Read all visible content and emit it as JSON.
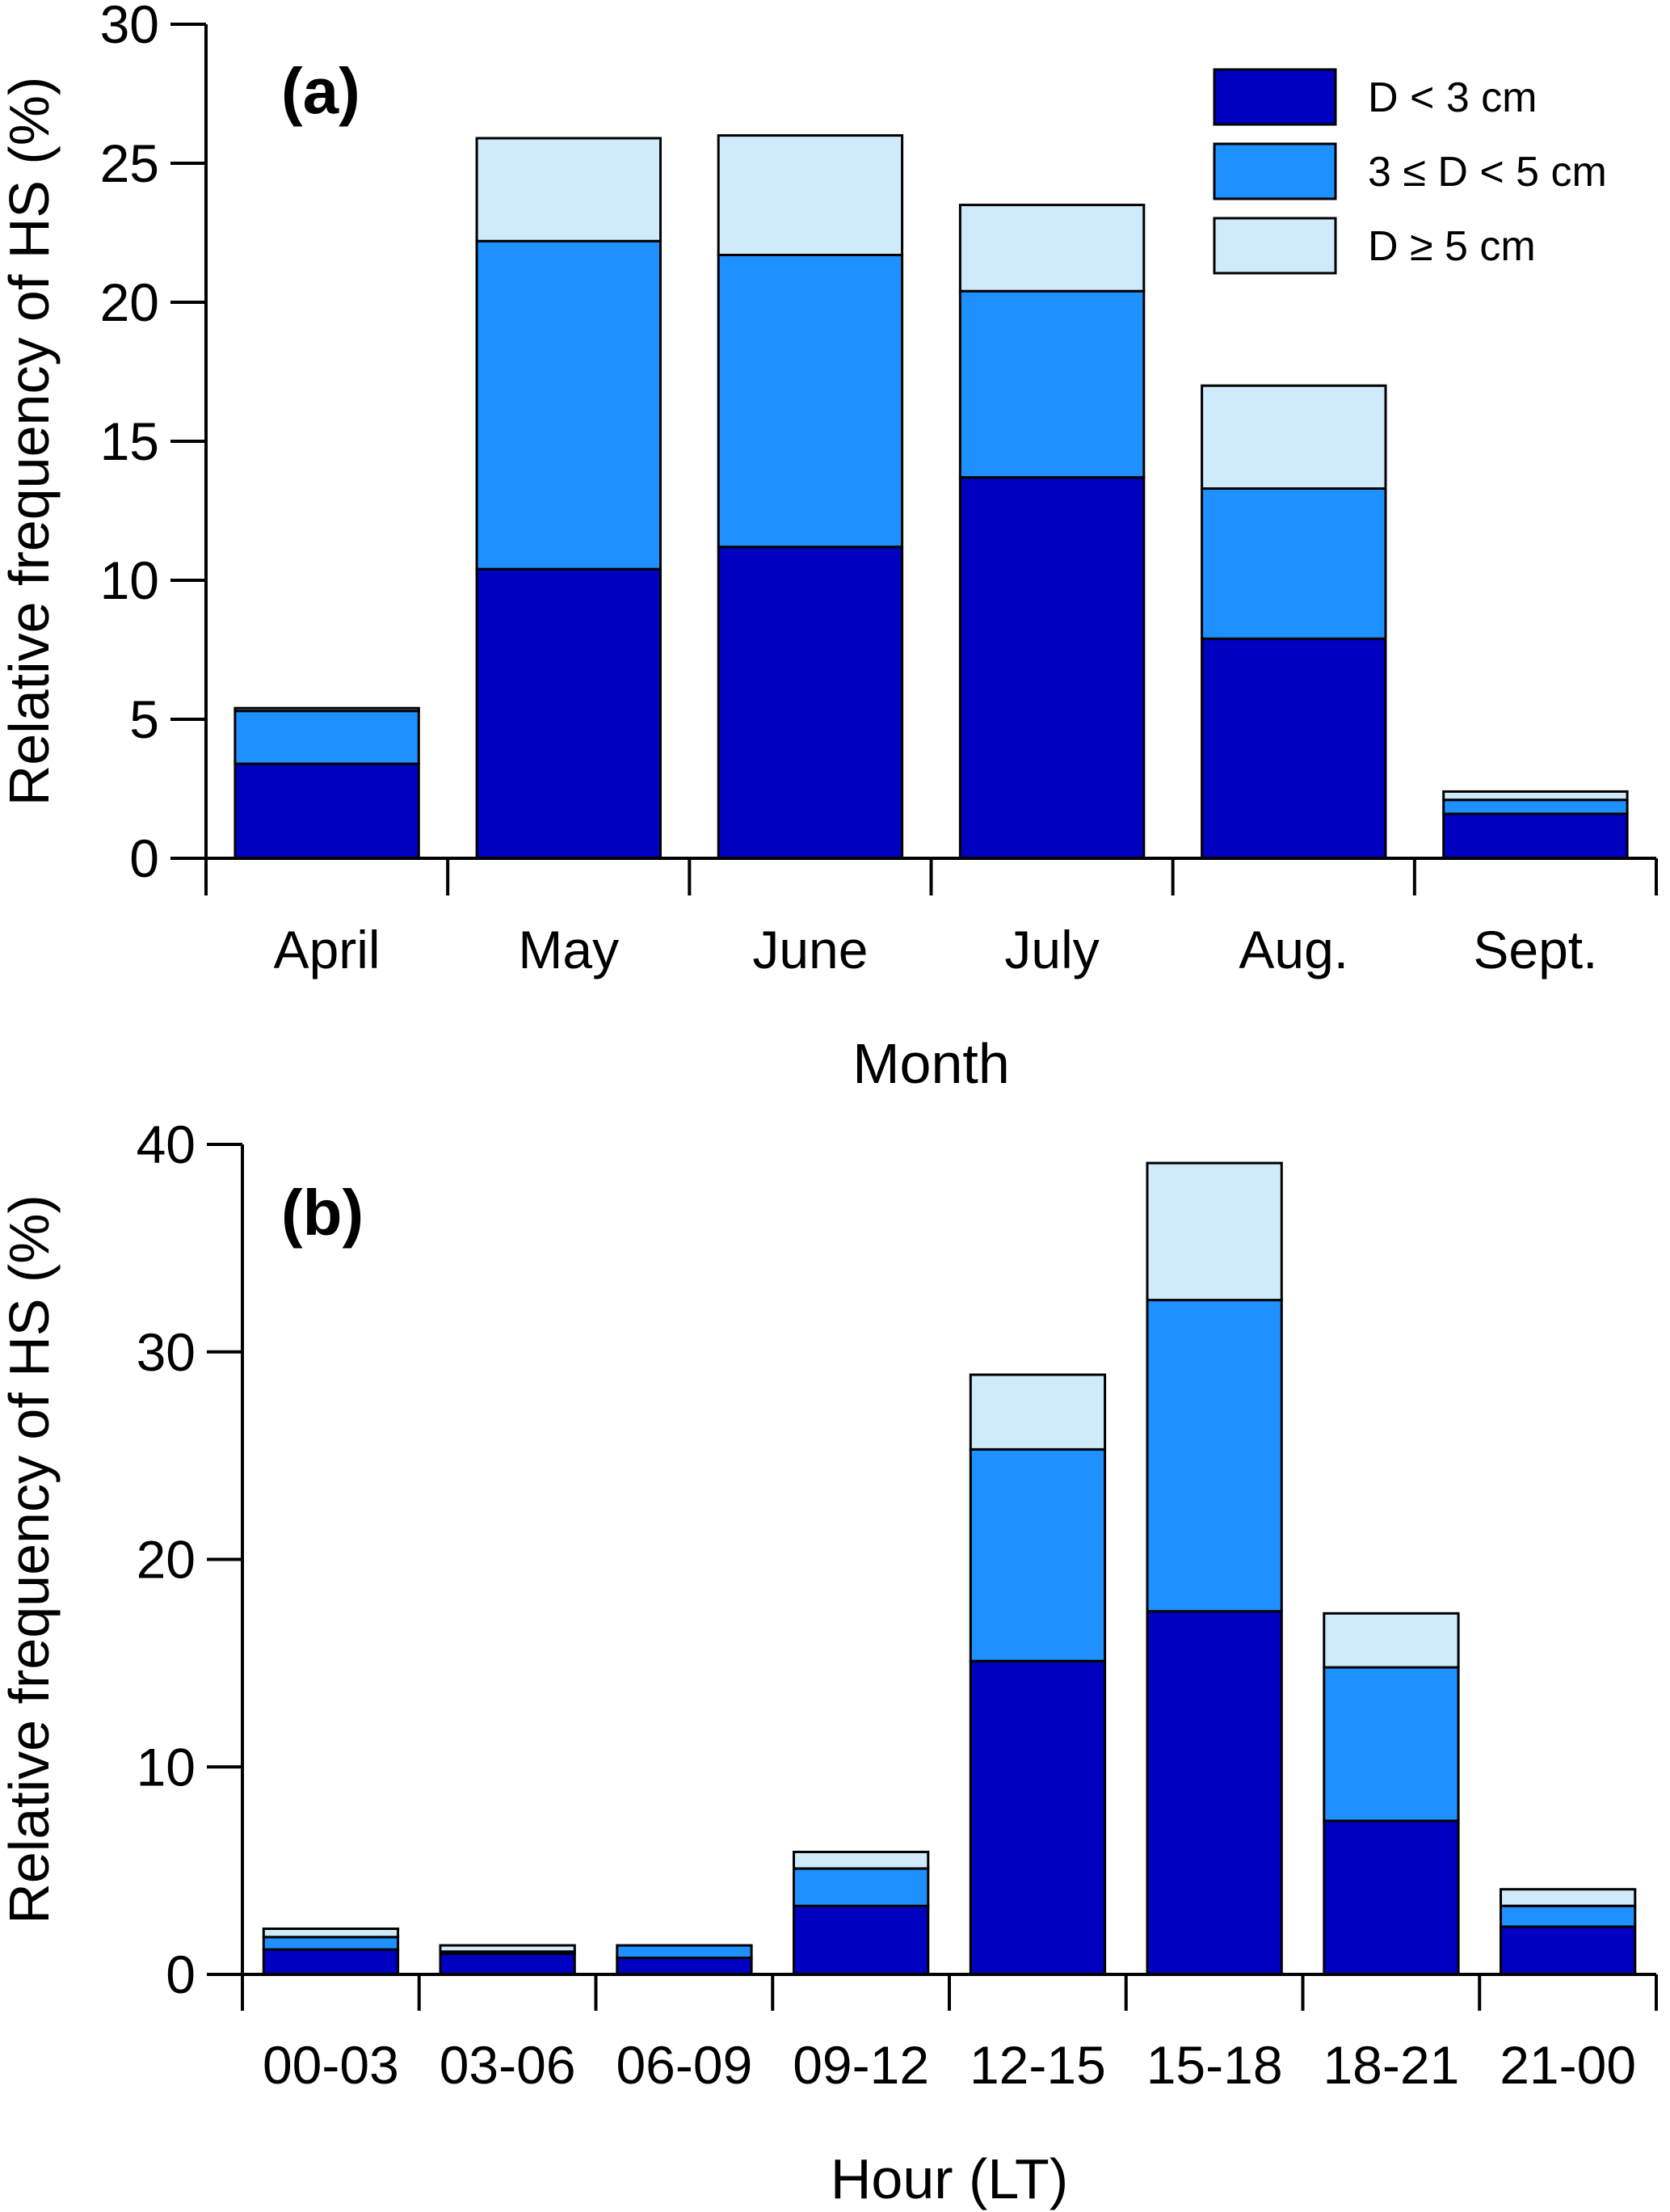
{
  "chart_data": [
    {
      "type": "bar",
      "stacked": true,
      "panel_label": "(a)",
      "xlabel": "Month",
      "ylabel": "Relative frequency of HS  (%)",
      "ylim": [
        0,
        30
      ],
      "yticks": [
        "0",
        "5",
        "10",
        "15",
        "20",
        "25",
        "30"
      ],
      "grid": false,
      "legend_position": "top-right",
      "categories": [
        "April",
        "May",
        "June",
        "July",
        "Aug.",
        "Sept."
      ],
      "series": [
        {
          "name": "D < 3 cm",
          "color": "#0000c0",
          "values": [
            3.4,
            10.4,
            11.2,
            13.7,
            7.9,
            1.6
          ]
        },
        {
          "name": "3 ≤ D < 5 cm",
          "color": "#1e90ff",
          "values": [
            1.9,
            11.8,
            10.5,
            6.7,
            5.4,
            0.5
          ]
        },
        {
          "name": "D ≥ 5 cm",
          "color": "#cfeafa",
          "values": [
            0.1,
            3.7,
            4.3,
            3.1,
            3.7,
            0.3
          ]
        }
      ]
    },
    {
      "type": "bar",
      "stacked": true,
      "panel_label": "(b)",
      "xlabel": "Hour (LT)",
      "ylabel": "Relative frequency of HS  (%)",
      "ylim": [
        0,
        40
      ],
      "yticks": [
        "0",
        "10",
        "20",
        "30",
        "40"
      ],
      "grid": false,
      "categories": [
        "00-03",
        "03-06",
        "06-09",
        "09-12",
        "12-15",
        "15-18",
        "18-21",
        "21-00"
      ],
      "series": [
        {
          "name": "D < 3 cm",
          "color": "#0000c0",
          "values": [
            1.2,
            1.0,
            0.8,
            3.3,
            15.1,
            17.5,
            7.4,
            2.3
          ]
        },
        {
          "name": "3 ≤ D < 5 cm",
          "color": "#1e90ff",
          "values": [
            0.6,
            0.1,
            0.6,
            1.8,
            10.2,
            15.0,
            7.4,
            1.0
          ]
        },
        {
          "name": "D ≥ 5 cm",
          "color": "#cfeafa",
          "values": [
            0.4,
            0.3,
            0.0,
            0.8,
            3.6,
            6.6,
            2.6,
            0.8
          ]
        }
      ]
    }
  ]
}
